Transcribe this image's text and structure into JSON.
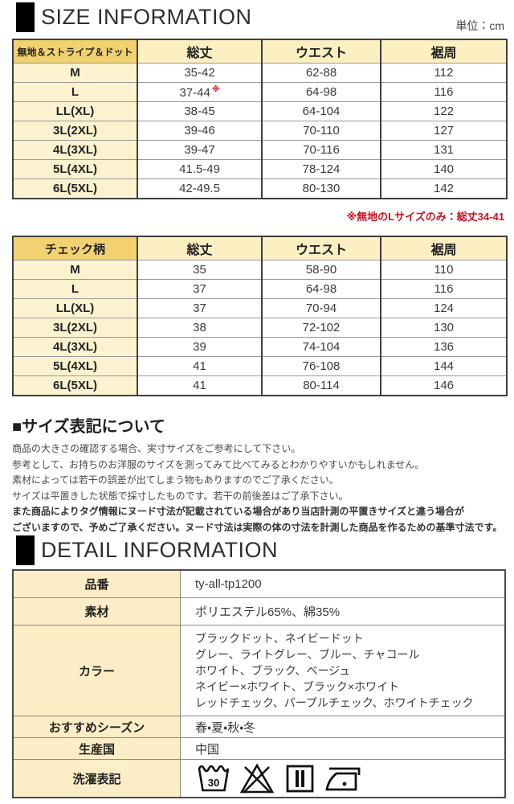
{
  "size_section": {
    "title": "SIZE INFORMATION",
    "unit": "単位：cm"
  },
  "detail_section": {
    "title": "DETAIL INFORMATION"
  },
  "size_tables": [
    {
      "name": "plain-stripe-dot",
      "first_header": "無地＆ストライプ＆ドット",
      "col_headers": [
        "総丈",
        "ウエスト",
        "裾周"
      ],
      "rows": [
        {
          "size": "M",
          "cells": [
            "35-42",
            "62-88",
            "112"
          ]
        },
        {
          "size": "L",
          "cells": [
            {
              "text": "37-44",
              "sup": "※"
            },
            "64-98",
            "116"
          ]
        },
        {
          "size": "LL(XL)",
          "cells": [
            "38-45",
            "64-104",
            "122"
          ]
        },
        {
          "size": "3L(2XL)",
          "cells": [
            "39-46",
            "70-110",
            "127"
          ]
        },
        {
          "size": "4L(3XL)",
          "cells": [
            "39-47",
            "70-116",
            "131"
          ]
        },
        {
          "size": "5L(4XL)",
          "cells": [
            "41.5-49",
            "78-124",
            "140"
          ]
        },
        {
          "size": "6L(5XL)",
          "cells": [
            "42-49.5",
            "80-130",
            "142"
          ]
        }
      ],
      "note": "※無地のLサイズのみ：総丈34-41"
    },
    {
      "name": "check-pattern",
      "first_header": "チェック柄",
      "col_headers": [
        "総丈",
        "ウエスト",
        "裾周"
      ],
      "rows": [
        {
          "size": "M",
          "cells": [
            "35",
            "58-90",
            "110"
          ]
        },
        {
          "size": "L",
          "cells": [
            "37",
            "64-98",
            "116"
          ]
        },
        {
          "size": "LL(XL)",
          "cells": [
            "37",
            "70-94",
            "124"
          ]
        },
        {
          "size": "3L(2XL)",
          "cells": [
            "38",
            "72-102",
            "130"
          ]
        },
        {
          "size": "4L(3XL)",
          "cells": [
            "39",
            "74-104",
            "136"
          ]
        },
        {
          "size": "5L(4XL)",
          "cells": [
            "41",
            "76-108",
            "144"
          ]
        },
        {
          "size": "6L(5XL)",
          "cells": [
            "41",
            "80-114",
            "146"
          ]
        }
      ]
    }
  ],
  "size_notation": {
    "title": "■サイズ表記について",
    "lines": [
      {
        "text": "商品の大きさの確認する場合、実寸サイズをご参考にして下さい。",
        "bold": false
      },
      {
        "text": "参考として、お持ちのお洋服のサイズを測ってみて比べてみるとわかりやすいかもしれません。",
        "bold": false
      },
      {
        "text": "素材によっては若干の誤差が出てしまう物もありますのでご了承ください。",
        "bold": false
      },
      {
        "text": "サイズは平置きした状態で採寸したものです。若干の前後差はご了承下さい。",
        "bold": false
      },
      {
        "text": "また商品によりタグ情報にヌード寸法が記載されている場合があり当店計測の平置きサイズと違う場合が",
        "bold": true
      },
      {
        "text": "ございますので、予めご了承ください。ヌード寸法は実際の体の寸法を計測した商品を作るための基準寸法です。",
        "bold": true
      }
    ]
  },
  "detail_table": {
    "rows": [
      {
        "key": "item-number",
        "label": "品番",
        "value": "ty-all-tp1200"
      },
      {
        "key": "material",
        "label": "素材",
        "value": "ポリエステル65%、綿35%"
      },
      {
        "key": "color",
        "label": "カラー",
        "lines": [
          "ブラックドット、ネイビードット",
          "グレー、ライトグレー、ブルー、チャコール",
          "ホワイト、ブラック、ベージュ",
          "ネイビー×ホワイト、ブラック×ホワイト",
          "レッドチェック、パープルチェック、ホワイトチェック"
        ]
      },
      {
        "key": "season",
        "label": "おすすめシーズン",
        "value": "春・夏・秋・冬"
      },
      {
        "key": "country",
        "label": "生産国",
        "value": "中国"
      },
      {
        "key": "wash",
        "label": "洗濯表記",
        "icons": [
          "wash-30-icon",
          "no-bleach-icon",
          "drip-dry-icon",
          "iron-one-dot-icon"
        ],
        "wash_temp": "30"
      }
    ]
  },
  "colors": {
    "accent_red": "#c7111e",
    "header_gold": "#f2d170",
    "cell_yellow": "#fdf2d0",
    "header_cream": "#fcefc2"
  }
}
